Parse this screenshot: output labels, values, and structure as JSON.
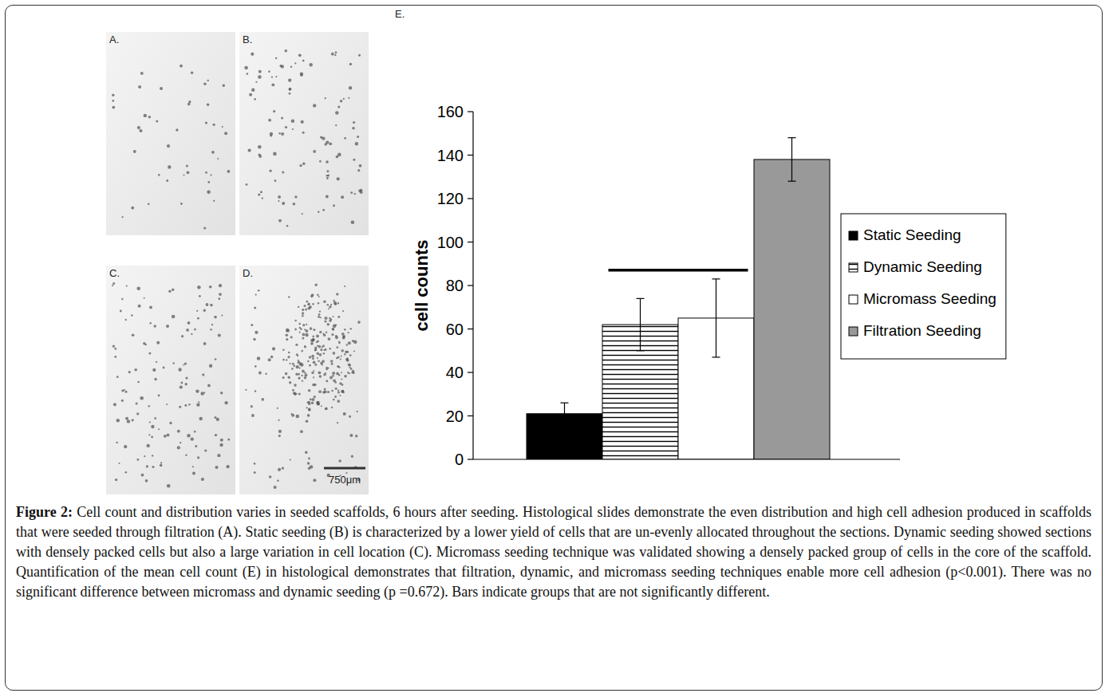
{
  "panels": [
    {
      "label": "A."
    },
    {
      "label": "B."
    },
    {
      "label": "C."
    },
    {
      "label": "D."
    }
  ],
  "scale_bar": "750μm",
  "chart_data": {
    "type": "bar",
    "panel": "E.",
    "y_label": "cell counts",
    "categories": [
      null
    ],
    "series": [
      {
        "name": "Static Seeding",
        "color": "#000000",
        "values": [
          21
        ],
        "errors": [
          5
        ]
      },
      {
        "name": "Dynamic Seeding",
        "color": "#000000",
        "line_style": "horizontal",
        "values": [
          62
        ],
        "errors": [
          12
        ]
      },
      {
        "name": "Micromass Seeding",
        "color": "#ffffff",
        "values": [
          65
        ],
        "errors": [
          18
        ]
      },
      {
        "name": "Filtration Seeding",
        "color": "#999999",
        "values": [
          138
        ],
        "errors": [
          10
        ]
      }
    ],
    "not_significant": [
      [
        1,
        2
      ]
    ],
    "ylim": [
      0,
      160
    ],
    "yticks": [
      0,
      20,
      40,
      60,
      80,
      100,
      120,
      140,
      160
    ],
    "grid": false,
    "legend": "right",
    "tick_labels": "y"
  },
  "caption": {
    "label": "Figure 2:",
    "text": "Cell count and distribution varies in seeded scaffolds, 6 hours after seeding. Histological slides demonstrate the even distribution and high cell adhesion produced in scaffolds that were seeded through filtration (A). Static seeding (B) is characterized by a lower yield of cells that are un-evenly allocated throughout the sections. Dynamic seeding showed sections with densely packed cells but also a large variation in cell location (C). Micromass seeding technique was validated showing a densely packed group of cells in the core of the scaffold. Quantification of the mean cell count (E) in histological demonstrates that filtration, dynamic, and micromass seeding techniques enable more cell adhesion (p<0.001). There was no significant difference between micromass and dynamic seeding (p =0.672). Bars indicate groups that are not significantly different."
  }
}
